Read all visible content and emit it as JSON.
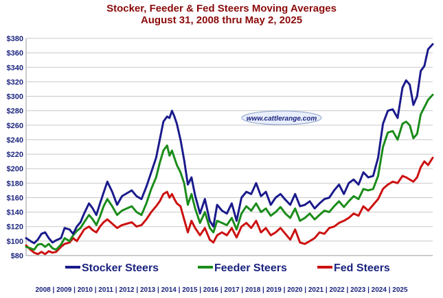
{
  "title": "Stocker, Feeder & Fed Steers Moving Averages",
  "subtitle": "August 31, 2008 thru May 2, 2025",
  "watermark": "www.cattlerange.com",
  "chart_data": {
    "type": "line",
    "title": "Stocker, Feeder & Fed Steers Moving Averages",
    "subtitle": "August 31, 2008 thru May 2, 2025",
    "ylim": [
      80,
      380
    ],
    "yticks": [
      80,
      100,
      120,
      140,
      160,
      180,
      200,
      220,
      240,
      260,
      280,
      300,
      320,
      340,
      360,
      380
    ],
    "ytick_labels": [
      "$80",
      "$100",
      "$120",
      "$140",
      "$160",
      "$180",
      "$200",
      "$220",
      "$240",
      "$260",
      "$280",
      "$300",
      "$320",
      "$340",
      "$360",
      "$380"
    ],
    "xlim": [
      2008.67,
      2025.34
    ],
    "x_labels": [
      "2008",
      "2009",
      "2010",
      "2011",
      "2012",
      "2013",
      "2014",
      "2015",
      "2016",
      "2017",
      "2018",
      "2019",
      "2020",
      "2021",
      "2022",
      "2023",
      "2024",
      "2025"
    ],
    "grid": true,
    "legend_position": "bottom",
    "series": [
      {
        "name": "Stocker Steers",
        "color": "#1a1a8c",
        "x": [
          2008.67,
          2008.85,
          2009.0,
          2009.15,
          2009.3,
          2009.45,
          2009.6,
          2009.75,
          2009.9,
          2010.1,
          2010.25,
          2010.45,
          2010.6,
          2010.75,
          2010.9,
          2011.05,
          2011.25,
          2011.4,
          2011.55,
          2011.7,
          2011.85,
          2012.0,
          2012.2,
          2012.4,
          2012.6,
          2012.8,
          2013.0,
          2013.2,
          2013.4,
          2013.6,
          2013.8,
          2014.0,
          2014.15,
          2014.3,
          2014.45,
          2014.55,
          2014.65,
          2014.75,
          2014.85,
          2015.0,
          2015.15,
          2015.3,
          2015.45,
          2015.6,
          2015.8,
          2016.0,
          2016.2,
          2016.35,
          2016.5,
          2016.7,
          2016.9,
          2017.1,
          2017.3,
          2017.5,
          2017.7,
          2017.9,
          2018.1,
          2018.3,
          2018.5,
          2018.7,
          2018.9,
          2019.1,
          2019.3,
          2019.5,
          2019.7,
          2019.9,
          2020.1,
          2020.3,
          2020.5,
          2020.7,
          2020.9,
          2021.1,
          2021.3,
          2021.5,
          2021.7,
          2021.9,
          2022.1,
          2022.3,
          2022.5,
          2022.7,
          2022.9,
          2023.1,
          2023.3,
          2023.5,
          2023.7,
          2023.9,
          2024.1,
          2024.25,
          2024.4,
          2024.55,
          2024.7,
          2024.85,
          2025.0,
          2025.15,
          2025.34
        ],
        "values": [
          104,
          100,
          97,
          102,
          110,
          112,
          104,
          98,
          101,
          104,
          118,
          116,
          110,
          120,
          126,
          138,
          152,
          145,
          136,
          152,
          167,
          182,
          168,
          150,
          162,
          166,
          170,
          162,
          158,
          175,
          195,
          215,
          240,
          265,
          272,
          270,
          280,
          272,
          262,
          240,
          212,
          178,
          188,
          163,
          138,
          158,
          128,
          120,
          150,
          142,
          138,
          152,
          128,
          160,
          168,
          165,
          180,
          162,
          168,
          150,
          160,
          165,
          157,
          150,
          165,
          148,
          150,
          155,
          145,
          152,
          158,
          160,
          170,
          178,
          165,
          180,
          185,
          178,
          195,
          188,
          190,
          215,
          262,
          280,
          282,
          270,
          312,
          322,
          316,
          288,
          300,
          335,
          342,
          365,
          372
        ]
      },
      {
        "name": "Feeder Steers",
        "color": "#1a8c1a",
        "x": [
          2008.67,
          2008.85,
          2009.0,
          2009.15,
          2009.3,
          2009.45,
          2009.6,
          2009.75,
          2009.9,
          2010.1,
          2010.25,
          2010.45,
          2010.6,
          2010.75,
          2010.9,
          2011.05,
          2011.25,
          2011.4,
          2011.55,
          2011.7,
          2011.85,
          2012.0,
          2012.2,
          2012.4,
          2012.6,
          2012.8,
          2013.0,
          2013.2,
          2013.4,
          2013.6,
          2013.8,
          2014.0,
          2014.15,
          2014.3,
          2014.45,
          2014.55,
          2014.65,
          2014.75,
          2014.85,
          2015.0,
          2015.15,
          2015.3,
          2015.45,
          2015.6,
          2015.8,
          2016.0,
          2016.2,
          2016.35,
          2016.5,
          2016.7,
          2016.9,
          2017.1,
          2017.3,
          2017.5,
          2017.7,
          2017.9,
          2018.1,
          2018.3,
          2018.5,
          2018.7,
          2018.9,
          2019.1,
          2019.3,
          2019.5,
          2019.7,
          2019.9,
          2020.1,
          2020.3,
          2020.5,
          2020.7,
          2020.9,
          2021.1,
          2021.3,
          2021.5,
          2021.7,
          2021.9,
          2022.1,
          2022.3,
          2022.5,
          2022.7,
          2022.9,
          2023.1,
          2023.3,
          2023.5,
          2023.7,
          2023.9,
          2024.1,
          2024.25,
          2024.4,
          2024.55,
          2024.7,
          2024.85,
          2025.0,
          2025.15,
          2025.34
        ],
        "values": [
          92,
          90,
          88,
          95,
          96,
          92,
          96,
          90,
          88,
          95,
          104,
          100,
          108,
          114,
          118,
          126,
          136,
          130,
          122,
          134,
          148,
          158,
          148,
          136,
          142,
          145,
          148,
          140,
          136,
          152,
          172,
          188,
          208,
          225,
          232,
          218,
          225,
          215,
          205,
          195,
          180,
          150,
          165,
          145,
          125,
          140,
          118,
          112,
          128,
          125,
          122,
          132,
          116,
          138,
          148,
          142,
          152,
          140,
          145,
          135,
          140,
          147,
          138,
          132,
          145,
          128,
          132,
          138,
          130,
          136,
          142,
          140,
          148,
          155,
          147,
          155,
          162,
          158,
          172,
          170,
          172,
          190,
          230,
          250,
          252,
          240,
          262,
          265,
          260,
          242,
          248,
          275,
          285,
          295,
          302
        ]
      },
      {
        "name": "Fed Steers",
        "color": "#cc1010",
        "x": [
          2008.67,
          2008.85,
          2009.0,
          2009.15,
          2009.3,
          2009.45,
          2009.6,
          2009.75,
          2009.9,
          2010.1,
          2010.25,
          2010.45,
          2010.6,
          2010.75,
          2010.9,
          2011.05,
          2011.25,
          2011.4,
          2011.55,
          2011.7,
          2011.85,
          2012.0,
          2012.2,
          2012.4,
          2012.6,
          2012.8,
          2013.0,
          2013.2,
          2013.4,
          2013.6,
          2013.8,
          2014.0,
          2014.15,
          2014.3,
          2014.45,
          2014.55,
          2014.65,
          2014.75,
          2014.85,
          2015.0,
          2015.15,
          2015.3,
          2015.45,
          2015.6,
          2015.8,
          2016.0,
          2016.2,
          2016.35,
          2016.5,
          2016.7,
          2016.9,
          2017.1,
          2017.3,
          2017.5,
          2017.7,
          2017.9,
          2018.1,
          2018.3,
          2018.5,
          2018.7,
          2018.9,
          2019.1,
          2019.3,
          2019.5,
          2019.7,
          2019.9,
          2020.1,
          2020.3,
          2020.5,
          2020.7,
          2020.9,
          2021.1,
          2021.3,
          2021.5,
          2021.7,
          2021.9,
          2022.1,
          2022.3,
          2022.5,
          2022.7,
          2022.9,
          2023.1,
          2023.3,
          2023.5,
          2023.7,
          2023.9,
          2024.1,
          2024.25,
          2024.4,
          2024.55,
          2024.7,
          2024.85,
          2025.0,
          2025.15,
          2025.34
        ],
        "values": [
          94,
          88,
          84,
          82,
          85,
          82,
          86,
          84,
          85,
          92,
          96,
          98,
          104,
          100,
          108,
          116,
          120,
          115,
          112,
          120,
          126,
          130,
          124,
          118,
          122,
          124,
          126,
          120,
          122,
          130,
          140,
          148,
          155,
          165,
          168,
          160,
          165,
          158,
          152,
          148,
          130,
          112,
          128,
          118,
          108,
          118,
          102,
          98,
          108,
          112,
          108,
          118,
          105,
          120,
          125,
          118,
          128,
          112,
          118,
          108,
          112,
          118,
          110,
          102,
          116,
          98,
          96,
          100,
          104,
          112,
          110,
          118,
          120,
          125,
          128,
          132,
          138,
          135,
          148,
          142,
          150,
          158,
          172,
          178,
          182,
          180,
          190,
          188,
          185,
          182,
          188,
          202,
          210,
          205,
          215
        ]
      }
    ]
  }
}
